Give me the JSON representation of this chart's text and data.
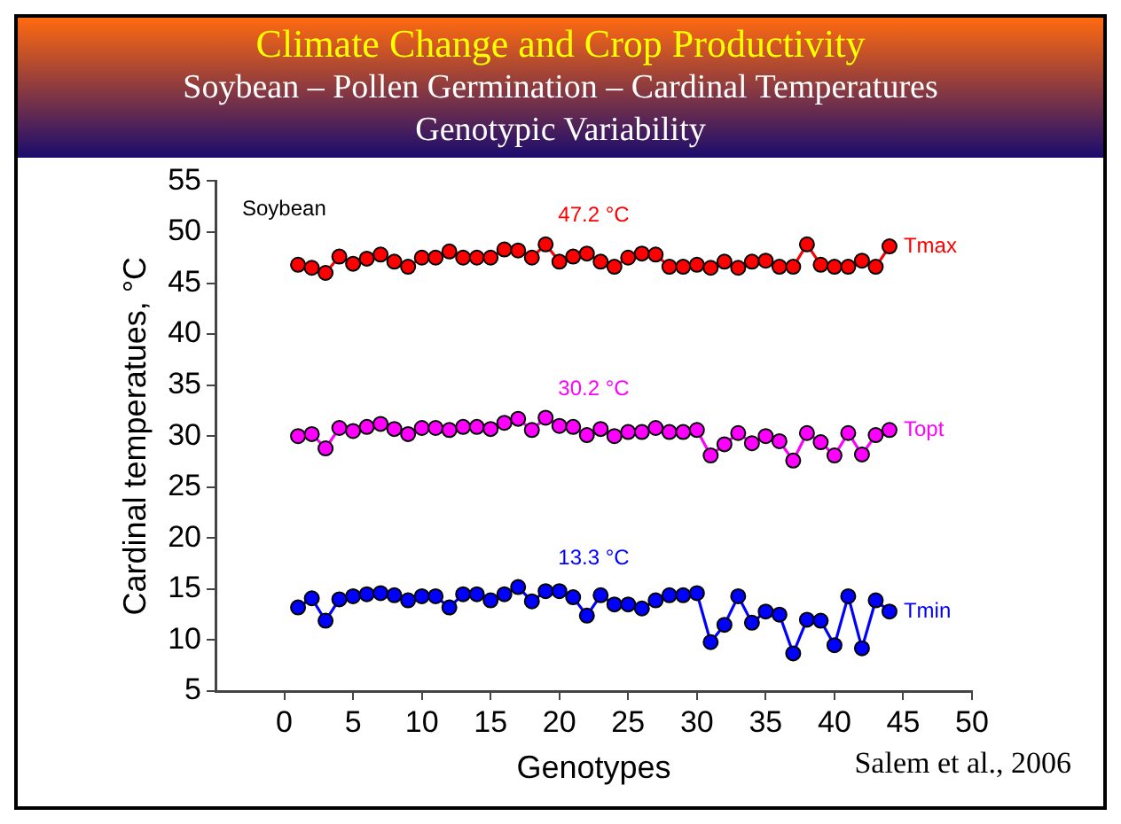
{
  "chart_data": {
    "type": "line",
    "title": "Climate Change and Crop Productivity",
    "subtitle": "Soybean – Pollen Germination – Cardinal Temperatures\nGenotypic Variability",
    "xlabel": "Genotypes",
    "ylabel": "Cardinal temperatues, °C",
    "x": [
      1,
      2,
      3,
      4,
      5,
      6,
      7,
      8,
      9,
      10,
      11,
      12,
      13,
      14,
      15,
      16,
      17,
      18,
      19,
      20,
      21,
      22,
      23,
      24,
      25,
      26,
      27,
      28,
      29,
      30,
      31,
      32,
      33,
      34,
      35,
      36,
      37,
      38,
      39,
      40,
      41,
      42,
      43,
      44
    ],
    "series": [
      {
        "name": "Tmax",
        "color": "#ff0000",
        "values": [
          46.8,
          46.5,
          46.0,
          47.6,
          46.9,
          47.4,
          47.8,
          47.1,
          46.6,
          47.5,
          47.5,
          48.1,
          47.5,
          47.5,
          47.5,
          48.3,
          48.2,
          47.5,
          48.8,
          47.1,
          47.6,
          47.9,
          47.1,
          46.6,
          47.5,
          47.9,
          47.8,
          46.6,
          46.6,
          46.8,
          46.5,
          47.1,
          46.5,
          47.1,
          47.2,
          46.6,
          46.6,
          48.8,
          46.8,
          46.6,
          46.6,
          47.2,
          46.6,
          48.6
        ]
      },
      {
        "name": "Topt",
        "color": "#ff00ff",
        "values": [
          30.0,
          30.2,
          28.8,
          30.8,
          30.5,
          30.9,
          31.2,
          30.7,
          30.2,
          30.8,
          30.8,
          30.6,
          30.9,
          30.9,
          30.7,
          31.3,
          31.7,
          30.6,
          31.8,
          31.0,
          30.9,
          30.1,
          30.7,
          30.0,
          30.4,
          30.4,
          30.8,
          30.4,
          30.4,
          30.6,
          28.1,
          29.2,
          30.3,
          29.3,
          30.0,
          29.5,
          27.6,
          30.3,
          29.4,
          28.1,
          30.3,
          28.2,
          30.1,
          30.6
        ]
      },
      {
        "name": "Tmin",
        "color": "#0000ff",
        "values": [
          13.2,
          14.1,
          11.9,
          14.0,
          14.3,
          14.5,
          14.6,
          14.4,
          13.9,
          14.3,
          14.3,
          13.2,
          14.5,
          14.5,
          13.9,
          14.5,
          15.2,
          13.8,
          14.8,
          14.8,
          14.2,
          12.4,
          14.4,
          13.5,
          13.5,
          13.1,
          13.9,
          14.4,
          14.4,
          14.6,
          9.8,
          11.5,
          14.3,
          11.7,
          12.8,
          12.5,
          8.7,
          12.0,
          11.9,
          9.5,
          14.3,
          9.2,
          13.9,
          12.8
        ]
      }
    ],
    "xlim": [
      -5,
      50
    ],
    "xticks": [
      0,
      5,
      10,
      15,
      20,
      25,
      30,
      35,
      40,
      45,
      50
    ],
    "ylim": [
      5,
      55
    ],
    "yticks": [
      5,
      10,
      15,
      20,
      25,
      30,
      35,
      40,
      45,
      50,
      55
    ],
    "grid": false,
    "legend": "right",
    "marker": "circle",
    "line_style": "solid",
    "annotations": [
      "Soybean",
      "47.2 °C",
      "30.2 °C",
      "13.3 °C",
      "Salem et al., 2006"
    ]
  }
}
